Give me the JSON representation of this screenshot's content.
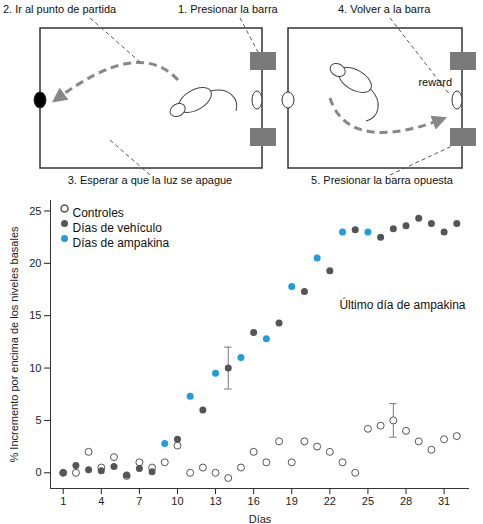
{
  "diagram": {
    "labels": {
      "step2": "2. Ir al punto de partida",
      "step1": "1. Presionar la barra",
      "step4": "4. Volver a la barra",
      "step3": "3. Esperar a que la luz se apague",
      "step5": "5. Presionar la barra opuesta",
      "reward": "reward"
    }
  },
  "chart_data": {
    "type": "scatter",
    "xlabel": "Días",
    "ylabel": "% Incremento por encima de los niveles basales",
    "xlim": [
      0,
      33
    ],
    "xticks": [
      1,
      4,
      7,
      10,
      13,
      16,
      19,
      22,
      25,
      28,
      31
    ],
    "ylim": [
      -1.5,
      26
    ],
    "yticks": [
      0,
      5,
      10,
      15,
      20,
      25
    ],
    "legend": "top-left",
    "annotations": [
      {
        "text": "Último día de ampakina"
      }
    ],
    "series": [
      {
        "name": "Controles",
        "color": "#555555",
        "marker": "circle-open",
        "x": [
          1,
          2,
          3,
          4,
          5,
          6,
          7,
          8,
          9,
          10,
          11,
          12,
          13,
          14,
          15,
          16,
          17,
          18,
          19,
          20,
          21,
          22,
          23,
          24,
          25,
          26,
          27,
          28,
          29,
          30,
          31,
          32
        ],
        "values": [
          0,
          0,
          2,
          0.5,
          1.5,
          -0.3,
          1,
          0.5,
          1,
          2.6,
          0,
          0.5,
          0,
          -0.5,
          0.5,
          2,
          1,
          3,
          1,
          3,
          2.5,
          2,
          1,
          0,
          4.2,
          4.5,
          5,
          4,
          3,
          2.2,
          3.2,
          3.5
        ],
        "error_bars": [
          {
            "x": 27,
            "error": 1.6
          }
        ]
      },
      {
        "name": "Días de vehículo",
        "color": "#555555",
        "marker": "circle",
        "x": [
          1,
          2,
          3,
          4,
          5,
          6,
          7,
          8,
          10,
          12,
          14,
          16,
          18,
          20,
          22,
          24,
          26,
          27,
          28,
          29,
          30,
          31,
          32
        ],
        "values": [
          0,
          0.7,
          0.3,
          0.2,
          0.6,
          -0.2,
          0.4,
          0.1,
          3.2,
          6,
          10,
          13.4,
          14.3,
          17.3,
          19.3,
          23.2,
          22.5,
          23.3,
          23.6,
          24.3,
          23.8,
          23,
          23.8
        ],
        "error_bars": [
          {
            "x": 14,
            "error": 2
          }
        ]
      },
      {
        "name": "Días de ampakina",
        "color": "#1f9de0",
        "marker": "circle",
        "x": [
          9,
          11,
          13,
          15,
          17,
          19,
          21,
          23,
          25
        ],
        "values": [
          2.8,
          7.3,
          9.5,
          11,
          12.8,
          17.8,
          20.5,
          23,
          23
        ]
      }
    ]
  }
}
